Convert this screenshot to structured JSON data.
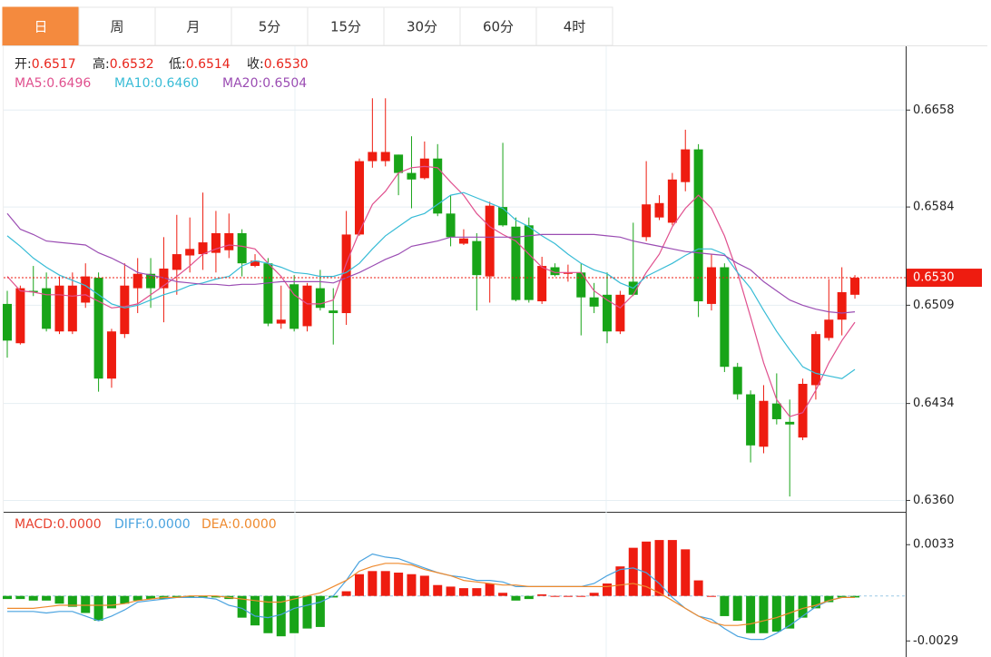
{
  "tabs": [
    "日",
    "周",
    "月",
    "5分",
    "15分",
    "30分",
    "60分",
    "4时"
  ],
  "active_tab": 0,
  "chart_data": [
    {
      "type": "candlestick",
      "up_color": "#ee1c10",
      "down_color": "#18a418",
      "readout": [
        {
          "label": "开:",
          "value": "0.6517"
        },
        {
          "label": "高:",
          "value": "0.6532"
        },
        {
          "label": "低:",
          "value": "0.6514"
        },
        {
          "label": "收:",
          "value": "0.6530"
        }
      ],
      "open": [
        0.651,
        0.648,
        0.652,
        0.6522,
        0.6489,
        0.6489,
        0.6511,
        0.653,
        0.6453,
        0.6487,
        0.6522,
        0.6533,
        0.6522,
        0.6536,
        0.6547,
        0.6548,
        0.6549,
        0.6551,
        0.6564,
        0.6539,
        0.6541,
        0.6495,
        0.6525,
        0.6493,
        0.6522,
        0.6505,
        0.6503,
        0.6563,
        0.6619,
        0.6619,
        0.6624,
        0.661,
        0.6606,
        0.6621,
        0.6579,
        0.6556,
        0.6558,
        0.6531,
        0.6584,
        0.6569,
        0.657,
        0.6512,
        0.6538,
        0.6533,
        0.6534,
        0.6515,
        0.6517,
        0.6489,
        0.6527,
        0.6561,
        0.6576,
        0.6572,
        0.6603,
        0.6628,
        0.651,
        0.6538,
        0.6462,
        0.6441,
        0.6401,
        0.6434,
        0.642,
        0.6408,
        0.6448,
        0.6484,
        0.6498,
        0.6517
      ],
      "high": [
        0.652,
        0.6524,
        0.6539,
        0.6534,
        0.6531,
        0.6534,
        0.6541,
        0.6534,
        0.6491,
        0.6541,
        0.6545,
        0.6545,
        0.6561,
        0.6578,
        0.6576,
        0.6595,
        0.6581,
        0.6579,
        0.6567,
        0.6548,
        0.6545,
        0.6524,
        0.6532,
        0.6526,
        0.6536,
        0.6522,
        0.6581,
        0.6621,
        0.6667,
        0.6667,
        0.6624,
        0.6638,
        0.6634,
        0.6632,
        0.6593,
        0.6567,
        0.6564,
        0.6588,
        0.6633,
        0.6576,
        0.6576,
        0.6546,
        0.6541,
        0.654,
        0.6541,
        0.6526,
        0.6534,
        0.652,
        0.6572,
        0.6619,
        0.6593,
        0.661,
        0.6643,
        0.6632,
        0.6548,
        0.6541,
        0.6465,
        0.6444,
        0.6448,
        0.6457,
        0.6437,
        0.6453,
        0.6489,
        0.6529,
        0.6538,
        0.6532
      ],
      "low": [
        0.6469,
        0.6479,
        0.6516,
        0.6489,
        0.6487,
        0.6487,
        0.6507,
        0.6443,
        0.6446,
        0.6484,
        0.6503,
        0.6507,
        0.6496,
        0.6517,
        0.6534,
        0.6536,
        0.6534,
        0.6545,
        0.6531,
        0.6538,
        0.6493,
        0.6491,
        0.6489,
        0.6489,
        0.6505,
        0.6479,
        0.6494,
        0.6562,
        0.6614,
        0.6615,
        0.6593,
        0.6583,
        0.6605,
        0.6577,
        0.6554,
        0.6555,
        0.6505,
        0.6511,
        0.6569,
        0.6512,
        0.6511,
        0.651,
        0.6531,
        0.6527,
        0.6486,
        0.6503,
        0.648,
        0.6487,
        0.6516,
        0.6558,
        0.6574,
        0.657,
        0.6596,
        0.65,
        0.6505,
        0.6458,
        0.6437,
        0.6389,
        0.6396,
        0.6418,
        0.6363,
        0.6406,
        0.6437,
        0.6482,
        0.6486,
        0.6514
      ],
      "close": [
        0.6482,
        0.6522,
        0.6519,
        0.6491,
        0.6524,
        0.6524,
        0.6531,
        0.6453,
        0.6489,
        0.6524,
        0.6533,
        0.6522,
        0.6537,
        0.6548,
        0.6552,
        0.6557,
        0.6564,
        0.6564,
        0.6541,
        0.6543,
        0.6495,
        0.6498,
        0.6491,
        0.6524,
        0.6507,
        0.6503,
        0.6563,
        0.6619,
        0.6626,
        0.6626,
        0.661,
        0.6605,
        0.6621,
        0.6579,
        0.6561,
        0.656,
        0.6532,
        0.6585,
        0.657,
        0.6513,
        0.6513,
        0.6539,
        0.6532,
        0.6534,
        0.6515,
        0.6508,
        0.6489,
        0.6517,
        0.6517,
        0.6586,
        0.6587,
        0.6605,
        0.6628,
        0.6512,
        0.6538,
        0.6462,
        0.6441,
        0.6402,
        0.6436,
        0.6422,
        0.6418,
        0.6449,
        0.6487,
        0.6498,
        0.6519,
        0.653
      ],
      "lines": [
        {
          "name": "MA5:",
          "readout": "0.6496",
          "color": "#e0508e",
          "values": [
            0.6531,
            0.652,
            0.6519,
            0.6517,
            0.6517,
            0.6516,
            0.6517,
            0.6512,
            0.6507,
            0.6508,
            0.651,
            0.6517,
            0.6524,
            0.6531,
            0.6539,
            0.6548,
            0.6552,
            0.6555,
            0.6554,
            0.6552,
            0.6541,
            0.6531,
            0.6517,
            0.651,
            0.651,
            0.6513,
            0.6541,
            0.6565,
            0.6586,
            0.6596,
            0.661,
            0.6614,
            0.6615,
            0.6614,
            0.6603,
            0.6593,
            0.6579,
            0.6569,
            0.6563,
            0.6558,
            0.6548,
            0.6538,
            0.6534,
            0.6534,
            0.6534,
            0.652,
            0.6513,
            0.6507,
            0.6517,
            0.6534,
            0.6548,
            0.6569,
            0.6583,
            0.6593,
            0.6583,
            0.6562,
            0.6534,
            0.65,
            0.6465,
            0.6437,
            0.6424,
            0.6427,
            0.6444,
            0.6465,
            0.6482,
            0.6496
          ]
        },
        {
          "name": "MA10:",
          "readout": "0.6460",
          "color": "#38bcd6",
          "values": [
            0.6562,
            0.6554,
            0.6545,
            0.6538,
            0.6532,
            0.6528,
            0.6524,
            0.6517,
            0.651,
            0.6507,
            0.6509,
            0.6513,
            0.6517,
            0.652,
            0.6524,
            0.6526,
            0.6529,
            0.6531,
            0.6539,
            0.6543,
            0.6541,
            0.6538,
            0.6534,
            0.6533,
            0.6531,
            0.6531,
            0.6534,
            0.6541,
            0.6552,
            0.6562,
            0.6569,
            0.6576,
            0.6579,
            0.6586,
            0.6593,
            0.6595,
            0.6591,
            0.6587,
            0.6583,
            0.6574,
            0.6569,
            0.6562,
            0.6556,
            0.6548,
            0.6541,
            0.6536,
            0.6533,
            0.6526,
            0.6522,
            0.6531,
            0.6536,
            0.6541,
            0.6547,
            0.6552,
            0.6552,
            0.6548,
            0.6534,
            0.6522,
            0.6505,
            0.6489,
            0.6475,
            0.6462,
            0.6457,
            0.6455,
            0.6453,
            0.646
          ]
        },
        {
          "name": "MA20:",
          "readout": "0.6504",
          "color": "#9b4db3",
          "values": [
            0.6579,
            0.6567,
            0.6563,
            0.6558,
            0.6557,
            0.6556,
            0.6555,
            0.6549,
            0.6545,
            0.654,
            0.6534,
            0.6532,
            0.653,
            0.6527,
            0.6526,
            0.6525,
            0.6525,
            0.6524,
            0.6525,
            0.6525,
            0.6526,
            0.6527,
            0.6527,
            0.6527,
            0.6527,
            0.6526,
            0.653,
            0.6534,
            0.6539,
            0.6544,
            0.6548,
            0.6554,
            0.6556,
            0.6558,
            0.6561,
            0.6561,
            0.6561,
            0.6561,
            0.6561,
            0.6561,
            0.6562,
            0.6563,
            0.6563,
            0.6563,
            0.6563,
            0.6563,
            0.6562,
            0.6561,
            0.6558,
            0.6556,
            0.6554,
            0.6552,
            0.655,
            0.6549,
            0.6548,
            0.6547,
            0.6541,
            0.6536,
            0.6527,
            0.652,
            0.6513,
            0.6509,
            0.6506,
            0.6504,
            0.6503,
            0.6504
          ]
        }
      ],
      "last_price": {
        "value": 0.653,
        "label": "0.6530"
      },
      "ylim": [
        0.6352,
        0.6706
      ],
      "yticks": [
        0.6658,
        0.6584,
        0.6509,
        0.6434,
        {
          "value": 0.636,
          "label": "0.6360"
        }
      ],
      "grid": true
    },
    {
      "type": "macd",
      "up_color": "#ee1c10",
      "down_color": "#18a418",
      "series": [
        {
          "name": "MACD:",
          "readout": "0.0000",
          "color": "#e8412f",
          "kind": "bar",
          "values": [
            -0.0002,
            -0.0002,
            -0.0003,
            -0.0003,
            -0.0005,
            -0.0007,
            -0.0011,
            -0.0016,
            -0.0008,
            -0.0005,
            -0.0003,
            -0.0002,
            -0.0002,
            -0.0001,
            -0.0001,
            -0.0001,
            -0.0001,
            -0.0002,
            -0.0014,
            -0.0019,
            -0.0024,
            -0.0026,
            -0.0024,
            -0.0021,
            -0.002,
            -0.0001,
            0.0003,
            0.0014,
            0.0016,
            0.0016,
            0.0015,
            0.0014,
            0.0013,
            0.0007,
            0.0006,
            0.0005,
            0.0005,
            0.0008,
            0.0002,
            -0.0003,
            -0.0002,
            0.0001,
            0,
            0,
            0,
            0.0002,
            0.0008,
            0.0019,
            0.0031,
            0.0035,
            0.0036,
            0.0036,
            0.003,
            0.001,
            0,
            -0.0013,
            -0.0016,
            -0.0024,
            -0.0024,
            -0.0023,
            -0.0021,
            -0.0014,
            -0.0008,
            -0.0004,
            -0.0001,
            -0.0001
          ]
        },
        {
          "name": "DIFF:",
          "readout": "0.0000",
          "color": "#4aa3df",
          "kind": "line",
          "values": [
            -0.001,
            -0.001,
            -0.001,
            -0.0011,
            -0.001,
            -0.001,
            -0.0013,
            -0.0016,
            -0.0013,
            -0.0009,
            -0.0004,
            -0.0003,
            -0.0002,
            -0.0001,
            -0.0001,
            -0.0001,
            -0.0002,
            -0.0006,
            -0.0008,
            -0.0013,
            -0.0014,
            -0.0012,
            -0.0008,
            -0.0006,
            -0.0004,
            0,
            0.001,
            0.0022,
            0.0027,
            0.0025,
            0.0024,
            0.0021,
            0.0018,
            0.0015,
            0.0013,
            0.0012,
            0.001,
            0.001,
            0.0009,
            0.0006,
            0.0006,
            0.0006,
            0.0006,
            0.0006,
            0.0006,
            0.0008,
            0.0013,
            0.0017,
            0.0018,
            0.0015,
            0.0008,
            -0.0001,
            -0.0008,
            -0.0013,
            -0.0015,
            -0.0021,
            -0.0026,
            -0.0028,
            -0.0028,
            -0.0024,
            -0.0019,
            -0.0013,
            -0.0007,
            -0.0003,
            -0.0001,
            -0.0001
          ]
        },
        {
          "name": "DEA:",
          "readout": "0.0000",
          "color": "#ef8a2e",
          "kind": "line",
          "values": [
            -0.0008,
            -0.0008,
            -0.0008,
            -0.0007,
            -0.0006,
            -0.0006,
            -0.0006,
            -0.0006,
            -0.0006,
            -0.0005,
            -0.0003,
            -0.0002,
            -0.0001,
            -0.0001,
            0,
            0,
            0,
            -0.0001,
            -0.0002,
            -0.0003,
            -0.0004,
            -0.0004,
            -0.0002,
            0,
            0.0002,
            0.0006,
            0.001,
            0.0016,
            0.0019,
            0.0021,
            0.0021,
            0.002,
            0.0017,
            0.0015,
            0.0013,
            0.001,
            0.0009,
            0.0008,
            0.0007,
            0.0007,
            0.0006,
            0.0006,
            0.0006,
            0.0006,
            0.0006,
            0.0006,
            0.0006,
            0.0007,
            0.0008,
            0.0006,
            0.0002,
            -0.0003,
            -0.0008,
            -0.0013,
            -0.0017,
            -0.0019,
            -0.0019,
            -0.0018,
            -0.0016,
            -0.0014,
            -0.0011,
            -0.0008,
            -0.0006,
            -0.0003,
            -0.0001,
            -0.0001
          ]
        }
      ],
      "ylim": [
        -0.0037,
        0.0053
      ],
      "yticks": [
        0.0033,
        -0.0029
      ],
      "grid": false
    }
  ]
}
